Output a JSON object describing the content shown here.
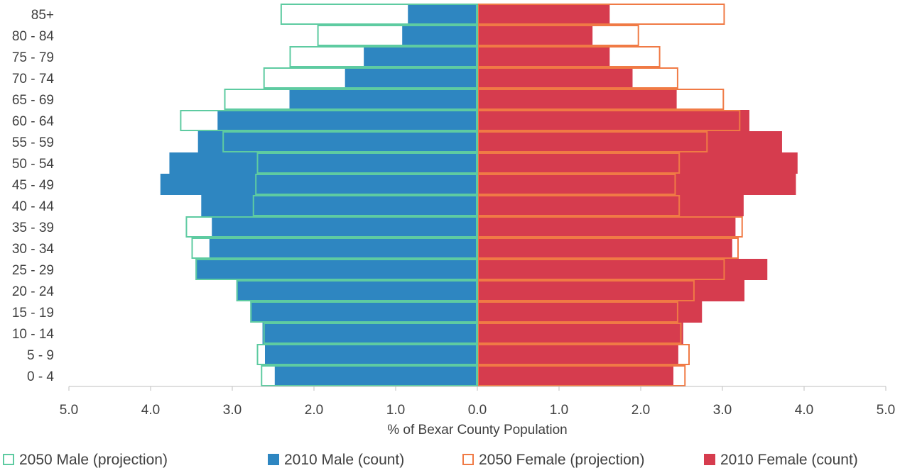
{
  "chart_data": {
    "type": "bar",
    "orientation": "horizontal",
    "kind": "population-pyramid",
    "title": "",
    "xlabel": "% of Bexar County Population",
    "ylabel": "",
    "xlim": [
      -5,
      5
    ],
    "x_ticks": [
      -5,
      -4,
      -3,
      -2,
      -1,
      0,
      1,
      2,
      3,
      4,
      5
    ],
    "x_tick_labels": [
      "5.0",
      "4.0",
      "3.0",
      "2.0",
      "1.0",
      "0.0",
      "1.0",
      "2.0",
      "3.0",
      "4.0",
      "5.0"
    ],
    "categories": [
      "0 - 4",
      "5 - 9",
      "10 - 14",
      "15 - 19",
      "20 - 24",
      "25 - 29",
      "30 - 34",
      "35 - 39",
      "40 - 44",
      "45 - 49",
      "50 - 54",
      "55 - 59",
      "60 - 64",
      "65 - 69",
      "70 - 74",
      "75 - 79",
      "80 - 84",
      "85+"
    ],
    "grid": false,
    "legend_position": "bottom",
    "series": [
      {
        "name": "2050 Male (projection)",
        "side": "left",
        "style": "outline",
        "color": "#5ecba1",
        "values": [
          2.65,
          2.7,
          2.62,
          2.78,
          2.95,
          3.45,
          3.5,
          3.57,
          2.75,
          2.72,
          2.7,
          3.12,
          3.64,
          3.1,
          2.62,
          2.3,
          1.96,
          2.41
        ]
      },
      {
        "name": "2010 Male (count)",
        "side": "left",
        "style": "filled",
        "color": "#2e86c1",
        "values": [
          2.48,
          2.6,
          2.63,
          2.78,
          2.95,
          3.45,
          3.28,
          3.25,
          3.38,
          3.88,
          3.77,
          3.42,
          3.18,
          2.3,
          1.62,
          1.39,
          0.92,
          0.85
        ]
      },
      {
        "name": "2050 Female (projection)",
        "side": "right",
        "style": "outline",
        "color": "#f07a45",
        "values": [
          2.55,
          2.6,
          2.5,
          2.46,
          2.66,
          3.03,
          3.2,
          3.25,
          2.48,
          2.43,
          2.48,
          2.82,
          3.22,
          3.02,
          2.46,
          2.24,
          1.98,
          3.03
        ]
      },
      {
        "name": "2010 Female (count)",
        "side": "right",
        "style": "filled",
        "color": "#d63c4e",
        "values": [
          2.4,
          2.46,
          2.52,
          2.75,
          3.27,
          3.55,
          3.12,
          3.16,
          3.26,
          3.9,
          3.92,
          3.73,
          3.33,
          2.44,
          1.9,
          1.62,
          1.41,
          1.62
        ]
      }
    ]
  }
}
